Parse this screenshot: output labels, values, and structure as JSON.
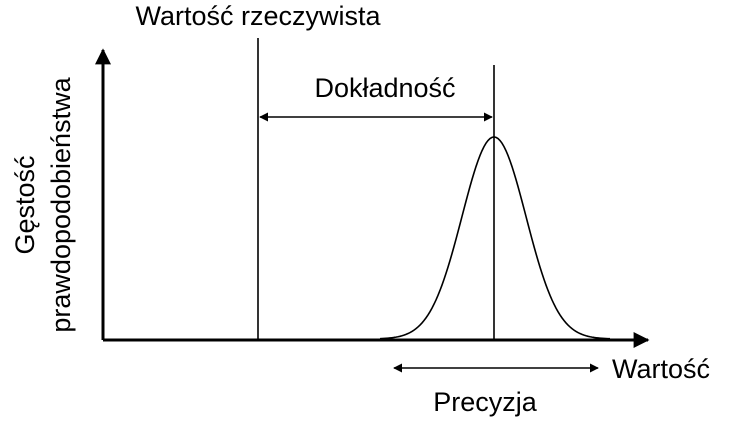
{
  "true_value_label": "Wartość rzeczywista",
  "accuracy_label": "Dokładność",
  "y_axis_label": [
    "Gęstość",
    "prawdopodobieństwa"
  ],
  "x_axis_label": "Wartość",
  "precision_label": "Precyzja"
}
